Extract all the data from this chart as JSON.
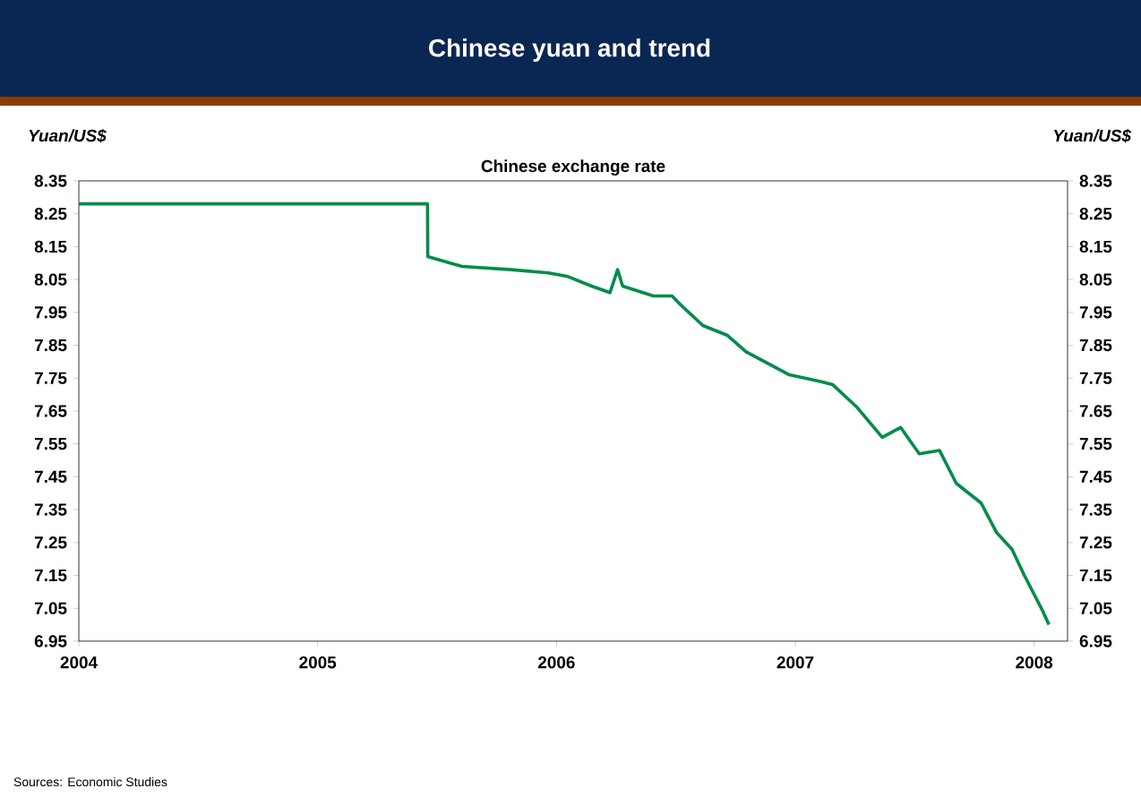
{
  "chart_data": {
    "type": "line",
    "title": "Chinese yuan and trend",
    "subtitle": "Chinese exchange rate",
    "ylabel": "Yuan/US$",
    "y2label": "Yuan/US$",
    "annotations": [
      "Sources: Economic Studies"
    ],
    "x": [
      2004.0,
      2004.5,
      2005.0,
      2005.46,
      2005.461,
      2005.604,
      2005.811,
      2005.966,
      2006.043,
      2006.147,
      2006.224,
      2006.256,
      2006.277,
      2006.406,
      2006.484,
      2006.51,
      2006.613,
      2006.716,
      2006.794,
      2006.898,
      2006.975,
      2007.105,
      2007.157,
      2007.26,
      2007.364,
      2007.441,
      2007.519,
      2007.604,
      2007.674,
      2007.778,
      2007.843,
      2007.907,
      2007.959,
      2008.037,
      2008.062
    ],
    "series": [
      {
        "color": "#008c4a",
        "values": [
          8.28,
          8.28,
          8.28,
          8.28,
          8.12,
          8.09,
          8.08,
          8.07,
          8.06,
          8.03,
          8.01,
          8.08,
          8.03,
          8.0,
          8.0,
          7.98,
          7.91,
          7.88,
          7.83,
          7.79,
          7.76,
          7.74,
          7.73,
          7.66,
          7.57,
          7.6,
          7.52,
          7.53,
          7.43,
          7.37,
          7.28,
          7.23,
          7.15,
          7.04,
          7.0
        ]
      }
    ],
    "xlim": [
      2004,
      2008.14
    ],
    "xticks": [
      2004,
      2005,
      2006,
      2007,
      2008
    ],
    "ylim": [
      6.95,
      8.35
    ],
    "yticks": [
      6.95,
      7.05,
      7.15,
      7.25,
      7.35,
      7.45,
      7.55,
      7.65,
      7.75,
      7.85,
      7.95,
      8.05,
      8.15,
      8.25,
      8.35
    ],
    "y2lim": [
      6.95,
      8.35
    ],
    "y2ticks": [
      6.95,
      7.05,
      7.15,
      7.25,
      7.35,
      7.45,
      7.55,
      7.65,
      7.75,
      7.85,
      7.95,
      8.05,
      8.15,
      8.25,
      8.35
    ],
    "grid": false,
    "marker": "none",
    "line_style": "solid"
  }
}
